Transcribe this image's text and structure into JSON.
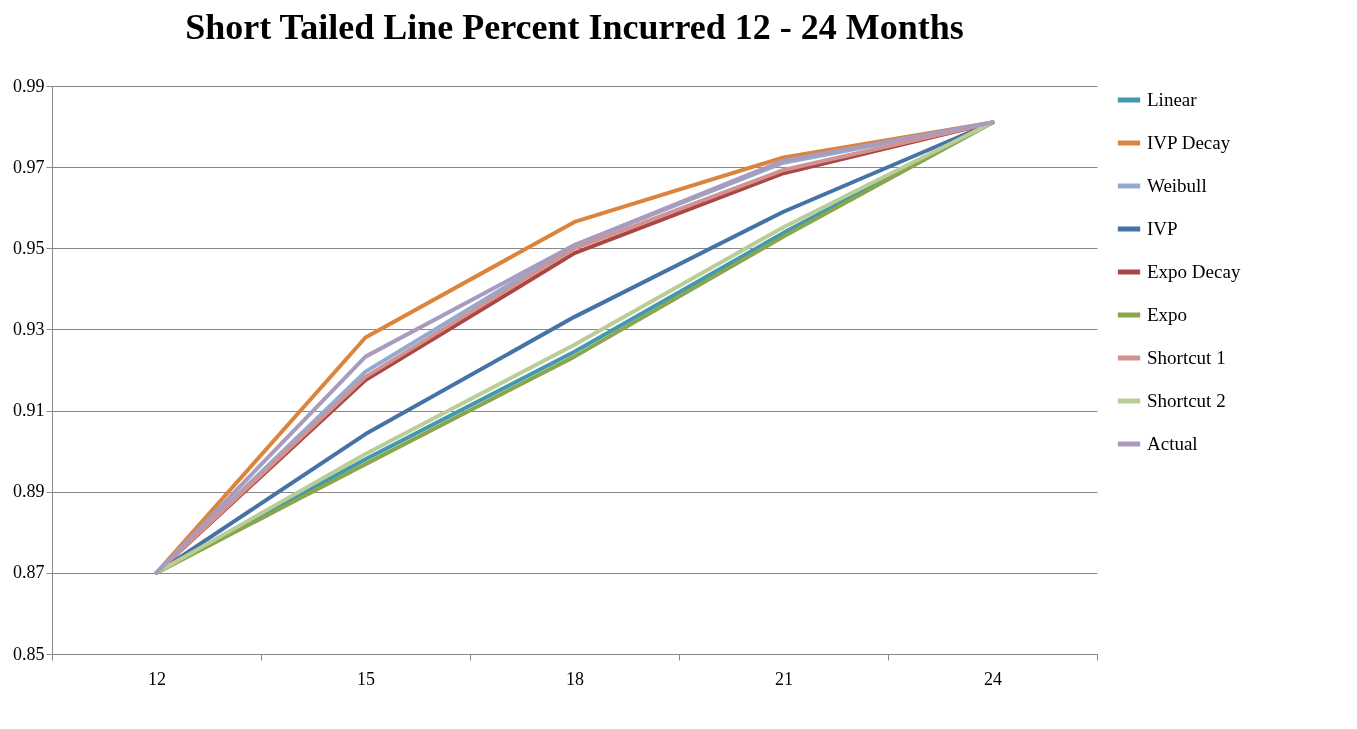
{
  "chart_data": {
    "type": "line",
    "title": "Short Tailed Line Percent Incurred 12 - 24 Months",
    "categories": [
      "12",
      "15",
      "18",
      "21",
      "24"
    ],
    "series": [
      {
        "name": "Linear",
        "color": "#4198af",
        "values": [
          0.87,
          0.898,
          0.9245,
          0.9538,
          0.981
        ]
      },
      {
        "name": "IVP Decay",
        "color": "#db843d",
        "values": [
          0.87,
          0.928,
          0.9565,
          0.9724,
          0.981
        ]
      },
      {
        "name": "Weibull",
        "color": "#93a9cf",
        "values": [
          0.87,
          0.9196,
          0.9508,
          0.9711,
          0.981
        ]
      },
      {
        "name": "IVP",
        "color": "#4572a7",
        "values": [
          0.87,
          0.9042,
          0.9331,
          0.959,
          0.981
        ]
      },
      {
        "name": "Expo Decay",
        "color": "#aa4643",
        "values": [
          0.87,
          0.9175,
          0.9488,
          0.9685,
          0.981
        ]
      },
      {
        "name": "Expo",
        "color": "#89a54e",
        "values": [
          0.87,
          0.8968,
          0.9233,
          0.9529,
          0.981
        ]
      },
      {
        "name": "Shortcut 1",
        "color": "#d19392",
        "values": [
          0.87,
          0.9183,
          0.95,
          0.9693,
          0.981
        ]
      },
      {
        "name": "Shortcut 2",
        "color": "#b9cd96",
        "values": [
          0.87,
          0.8993,
          0.9262,
          0.9552,
          0.981
        ]
      },
      {
        "name": "Actual",
        "color": "#a99bbd",
        "values": [
          0.87,
          0.9233,
          0.9508,
          0.9716,
          0.981
        ]
      }
    ],
    "ylim": [
      0.85,
      0.99
    ],
    "yticks": [
      0.85,
      0.87,
      0.89,
      0.91,
      0.93,
      0.95,
      0.97,
      0.99
    ],
    "grid": "y",
    "legend": "right",
    "marker": "none",
    "line_style": "solid"
  }
}
